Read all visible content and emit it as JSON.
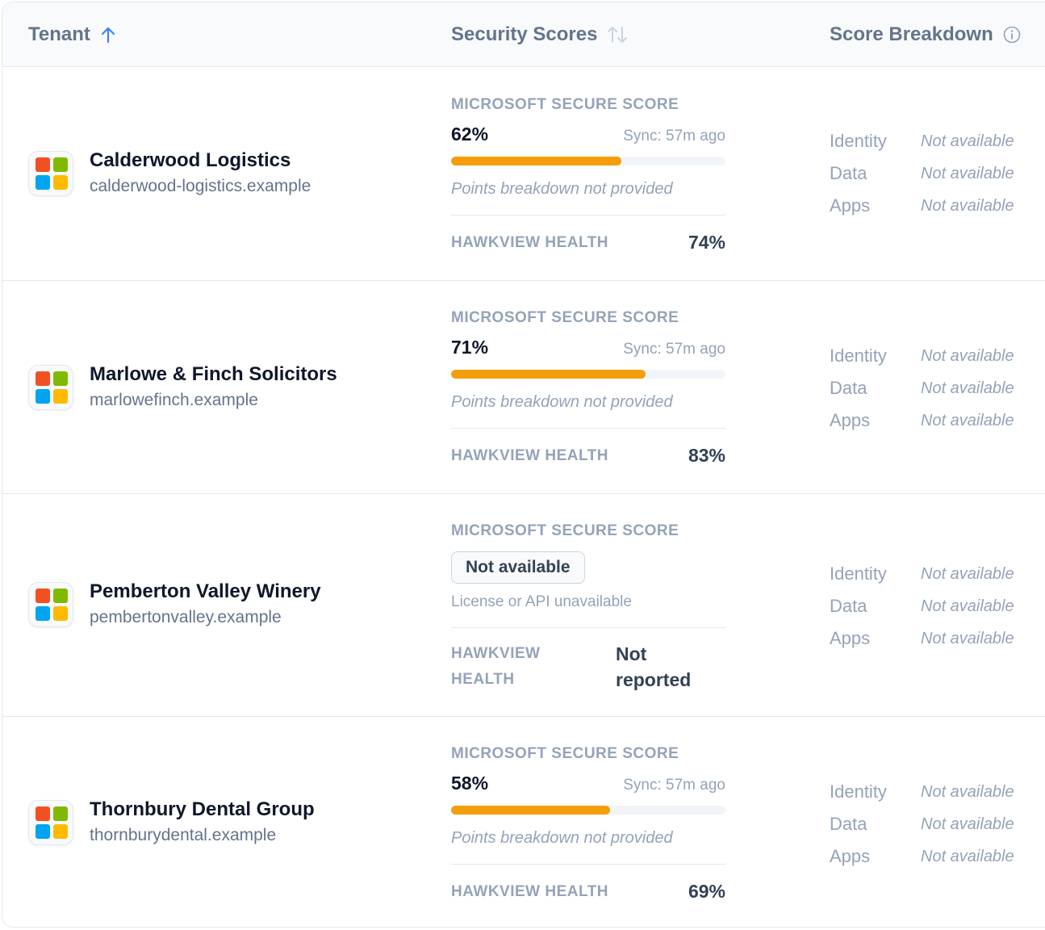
{
  "header": {
    "tenant": "Tenant",
    "security_scores": "Security Scores",
    "score_breakdown": "Score Breakdown"
  },
  "colors": {
    "accent_blue": "#3b82f6",
    "bar_fill": "#f59e0b",
    "logo": [
      "#f25022",
      "#7fba00",
      "#00a4ef",
      "#ffb900"
    ]
  },
  "labels": {
    "secure_score": "MICROSOFT SECURE SCORE",
    "hawkview_health": "HAWKVIEW HEALTH",
    "hawkview_health_line1": "HAWKVIEW",
    "hawkview_health_line2": "HEALTH"
  },
  "rows": [
    {
      "name": "Calderwood Logistics",
      "domain": "calderwood-logistics.example",
      "score_text": "62%",
      "score_value": 62,
      "sync": "Sync: 57m ago",
      "points_note": "Points breakdown not provided",
      "health": "74%",
      "breakdown": [
        {
          "label": "Identity",
          "value": "Not available"
        },
        {
          "label": "Data",
          "value": "Not available"
        },
        {
          "label": "Apps",
          "value": "Not available"
        }
      ]
    },
    {
      "name": "Marlowe & Finch Solicitors",
      "domain": "marlowefinch.example",
      "score_text": "71%",
      "score_value": 71,
      "sync": "Sync: 57m ago",
      "points_note": "Points breakdown not provided",
      "health": "83%",
      "breakdown": [
        {
          "label": "Identity",
          "value": "Not available"
        },
        {
          "label": "Data",
          "value": "Not available"
        },
        {
          "label": "Apps",
          "value": "Not available"
        }
      ]
    },
    {
      "name": "Pemberton Valley Winery",
      "domain": "pembertonvalley.example",
      "score_badge": "Not available",
      "license_note": "License or API unavailable",
      "health_line1": "Not",
      "health_line2": "reported",
      "breakdown": [
        {
          "label": "Identity",
          "value": "Not available"
        },
        {
          "label": "Data",
          "value": "Not available"
        },
        {
          "label": "Apps",
          "value": "Not available"
        }
      ]
    },
    {
      "name": "Thornbury Dental Group",
      "domain": "thornburydental.example",
      "score_text": "58%",
      "score_value": 58,
      "sync": "Sync: 57m ago",
      "points_note": "Points breakdown not provided",
      "health": "69%",
      "breakdown": [
        {
          "label": "Identity",
          "value": "Not available"
        },
        {
          "label": "Data",
          "value": "Not available"
        },
        {
          "label": "Apps",
          "value": "Not available"
        }
      ]
    }
  ]
}
